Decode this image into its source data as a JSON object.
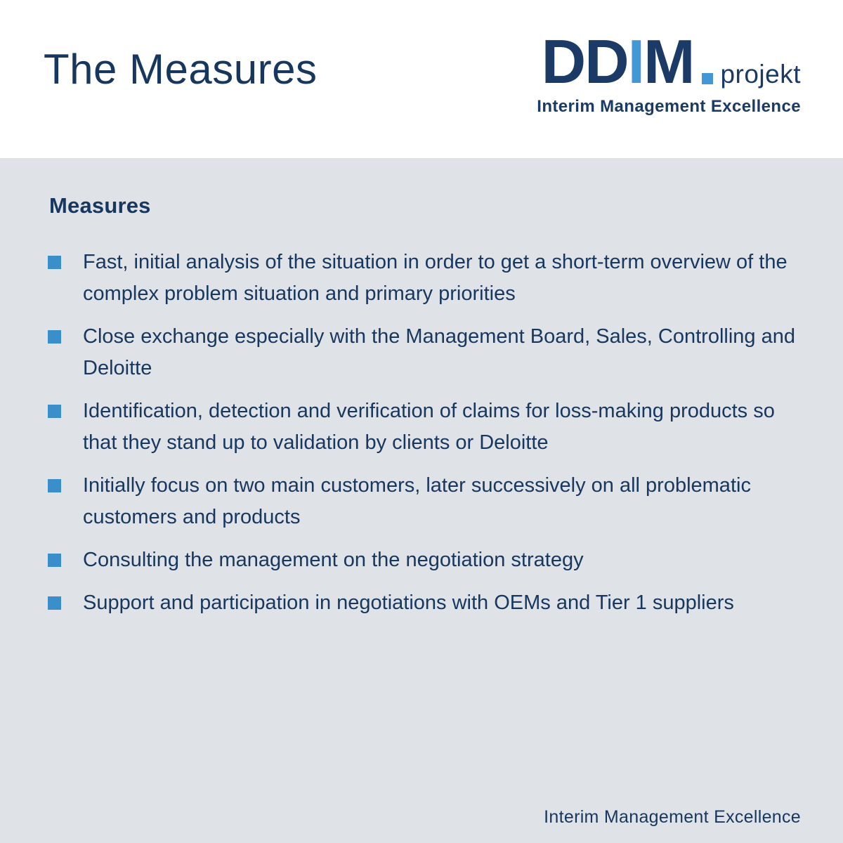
{
  "header": {
    "title": "The Measures",
    "logo": {
      "part_dd": "DD",
      "part_i": "I",
      "part_m": "M",
      "suffix": "projekt",
      "tagline": "Interim Management Excellence"
    }
  },
  "measures": {
    "heading": "Measures",
    "items": [
      "Fast, initial analysis of the situation in order to get a short-term overview of the complex problem situation and primary priorities",
      "Close exchange especially with the Management Board, Sales, Controlling and Deloitte",
      "Identification, detection and verification of claims for loss-making products so that they stand up to validation by clients or Deloitte",
      "Initially focus on two main customers, later successively on all problematic customers and products",
      "Consulting the management on the negotiation strategy",
      "Support and participation in negotiations with OEMs and Tier 1 suppliers"
    ]
  },
  "footer": {
    "text": "Interim Management Excellence"
  },
  "colors": {
    "navy_text": "#17375e",
    "logo_navy": "#1b3a66",
    "bullet_blue": "#3a8ec9",
    "logo_lightblue": "#4198d4",
    "body_background": "#dfe2e7",
    "header_background": "#ffffff"
  }
}
